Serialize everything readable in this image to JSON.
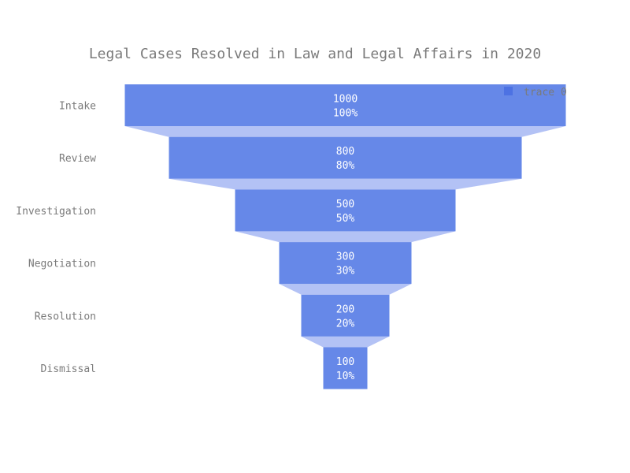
{
  "chart_data": {
    "type": "funnel",
    "title": "Legal Cases Resolved in Law and Legal Affairs in 2020",
    "categories": [
      "Intake",
      "Review",
      "Investigation",
      "Negotiation",
      "Resolution",
      "Dismissal"
    ],
    "series": [
      {
        "name": "trace 0",
        "values": [
          1000,
          800,
          500,
          300,
          200,
          100
        ],
        "percent_labels": [
          "100%",
          "80%",
          "50%",
          "30%",
          "20%",
          "10%"
        ]
      }
    ],
    "legend_position": "top-right",
    "grid": false
  },
  "colors": {
    "bar": "#6688e8",
    "connector": "#b3c2f5",
    "legend_swatch": "#4d72e3",
    "text": "#7a7a7a",
    "bar_text": "#ffffff"
  }
}
